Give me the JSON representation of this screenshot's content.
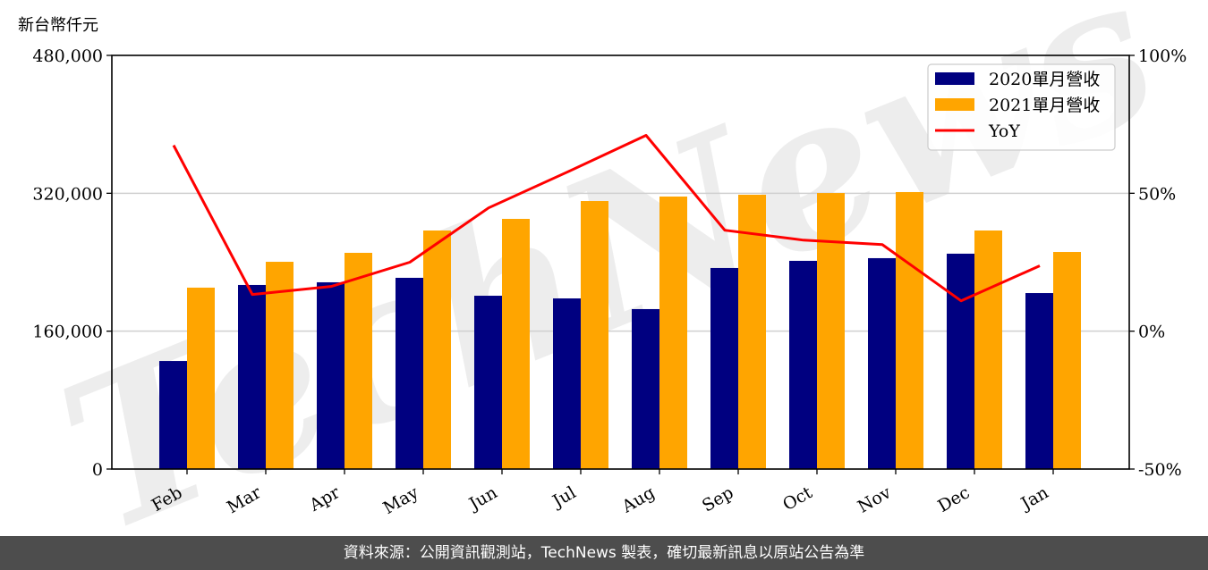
{
  "header": {
    "unit_label": "新台幣仟元"
  },
  "footer": {
    "text": "資料來源：公開資訊觀測站，TechNews 製表，確切最新訊息以原站公告為準"
  },
  "watermark": {
    "text": "TechNews"
  },
  "colors": {
    "series_2020": "#000080",
    "series_2021": "#FFA500",
    "yoy": "#FF0000",
    "grid": "#d0d0d0",
    "footer_bg": "#4d4d4d"
  },
  "chart_data": {
    "type": "bar",
    "title": "",
    "xlabel": "",
    "ylabel": "新台幣仟元",
    "y2label": "",
    "categories": [
      "Feb",
      "Mar",
      "Apr",
      "May",
      "Jun",
      "Jul",
      "Aug",
      "Sep",
      "Oct",
      "Nov",
      "Dec",
      "Jan"
    ],
    "series": [
      {
        "name": "2020單月營收",
        "type": "bar",
        "axis": "left",
        "values": [
          125400,
          213600,
          216700,
          221900,
          201100,
          198000,
          185600,
          233300,
          241600,
          244700,
          249900,
          204200
        ]
      },
      {
        "name": "2021單月營收",
        "type": "bar",
        "axis": "left",
        "values": [
          210500,
          240500,
          250900,
          276800,
          290300,
          311000,
          316200,
          318300,
          320300,
          321400,
          276800,
          251900
        ]
      },
      {
        "name": "YoY",
        "type": "line",
        "axis": "right",
        "unit": "%",
        "values": [
          67.4,
          13.3,
          16.2,
          25.0,
          44.7,
          57.7,
          71.0,
          36.6,
          33.0,
          31.4,
          11.0,
          23.7
        ]
      }
    ],
    "ylim": [
      0,
      480000
    ],
    "yticks": [
      "0",
      "160,000",
      "320,000",
      "480,000"
    ],
    "y2lim": [
      -50,
      100
    ],
    "y2ticks": [
      "-50%",
      "0%",
      "50%",
      "100%"
    ],
    "grid": "horizontal",
    "legend_position": "upper right",
    "legend": [
      "2020單月營收",
      "2021單月營收",
      "YoY"
    ]
  }
}
